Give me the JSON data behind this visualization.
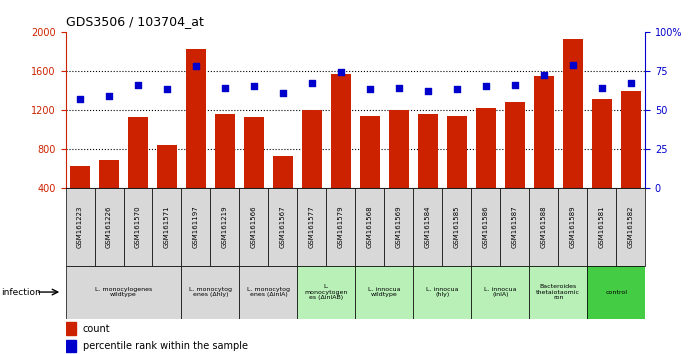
{
  "title": "GDS3506 / 103704_at",
  "samples": [
    "GSM161223",
    "GSM161226",
    "GSM161570",
    "GSM161571",
    "GSM161197",
    "GSM161219",
    "GSM161566",
    "GSM161567",
    "GSM161577",
    "GSM161579",
    "GSM161568",
    "GSM161569",
    "GSM161584",
    "GSM161585",
    "GSM161586",
    "GSM161587",
    "GSM161588",
    "GSM161589",
    "GSM161581",
    "GSM161582"
  ],
  "counts": [
    620,
    680,
    1130,
    840,
    1820,
    1160,
    1130,
    720,
    1200,
    1570,
    1140,
    1200,
    1160,
    1140,
    1220,
    1280,
    1550,
    1930,
    1310,
    1390
  ],
  "percentiles": [
    57,
    59,
    66,
    63,
    78,
    64,
    65,
    61,
    67,
    74,
    63,
    64,
    62,
    63,
    65,
    66,
    72,
    79,
    64,
    67
  ],
  "groups": [
    {
      "label": "L. monocylogenes\nwildtype",
      "start": 0,
      "end": 4,
      "color": "#d8d8d8"
    },
    {
      "label": "L. monocytog\nenes (Δhly)",
      "start": 4,
      "end": 6,
      "color": "#d8d8d8"
    },
    {
      "label": "L. monocytog\nenes (ΔinlA)",
      "start": 6,
      "end": 8,
      "color": "#d8d8d8"
    },
    {
      "label": "L.\nmonocytogen\nes (ΔinlAB)",
      "start": 8,
      "end": 10,
      "color": "#b8f0b8"
    },
    {
      "label": "L. innocua\nwildtype",
      "start": 10,
      "end": 12,
      "color": "#b8f0b8"
    },
    {
      "label": "L. innocua\n(hly)",
      "start": 12,
      "end": 14,
      "color": "#b8f0b8"
    },
    {
      "label": "L. innocua\n(inlA)",
      "start": 14,
      "end": 16,
      "color": "#b8f0b8"
    },
    {
      "label": "Bacteroides\nthetaiotaomic\nron",
      "start": 16,
      "end": 18,
      "color": "#b8f0b8"
    },
    {
      "label": "control",
      "start": 18,
      "end": 20,
      "color": "#44cc44"
    }
  ],
  "ylim_left": [
    400,
    2000
  ],
  "ylim_right": [
    0,
    100
  ],
  "yticks_left": [
    400,
    800,
    1200,
    1600,
    2000
  ],
  "yticks_right": [
    0,
    25,
    50,
    75,
    100
  ],
  "ytick_labels_right": [
    "0",
    "25",
    "50",
    "75",
    "100%"
  ],
  "bar_color": "#cc2200",
  "dot_color": "#0000cc",
  "tick_color_left": "#cc2200",
  "tick_color_right": "#0000cc"
}
